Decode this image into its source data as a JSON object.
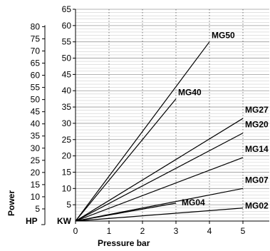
{
  "chart_data": {
    "type": "line",
    "xlabel": "Pressure bar",
    "ylabel": "Power",
    "x_ticks": [
      0,
      1,
      2,
      3,
      4,
      5
    ],
    "xlim": [
      0,
      5.6
    ],
    "kw_axis": {
      "unit_label": "KW",
      "ylim": [
        0,
        65
      ],
      "ticks": [
        5,
        10,
        15,
        20,
        25,
        30,
        35,
        40,
        45,
        50,
        55,
        60,
        65
      ]
    },
    "hp_axis": {
      "unit_label": "HP",
      "ticks": [
        5,
        10,
        15,
        20,
        25,
        30,
        35,
        40,
        45,
        50,
        55,
        60,
        65,
        70,
        75,
        80
      ],
      "hp_per_kw": 1.341
    },
    "series": [
      {
        "name": "MG50",
        "x": [
          0,
          4
        ],
        "y": [
          0,
          55
        ]
      },
      {
        "name": "MG40",
        "x": [
          0,
          3
        ],
        "y": [
          0,
          37.5
        ]
      },
      {
        "name": "MG27",
        "x": [
          0,
          5
        ],
        "y": [
          0,
          31.5
        ]
      },
      {
        "name": "MG20",
        "x": [
          0,
          5
        ],
        "y": [
          0,
          27
        ]
      },
      {
        "name": "MG14",
        "x": [
          0,
          5
        ],
        "y": [
          0,
          19.5
        ]
      },
      {
        "name": "MG07",
        "x": [
          0,
          5
        ],
        "y": [
          0,
          10
        ]
      },
      {
        "name": "MG04",
        "x": [
          0,
          3
        ],
        "y": [
          0,
          5.5
        ]
      },
      {
        "name": "MG02",
        "x": [
          0,
          5
        ],
        "y": [
          0,
          4
        ]
      }
    ],
    "grid": {
      "horizontal_step": 1,
      "vertical": "dotted"
    }
  }
}
